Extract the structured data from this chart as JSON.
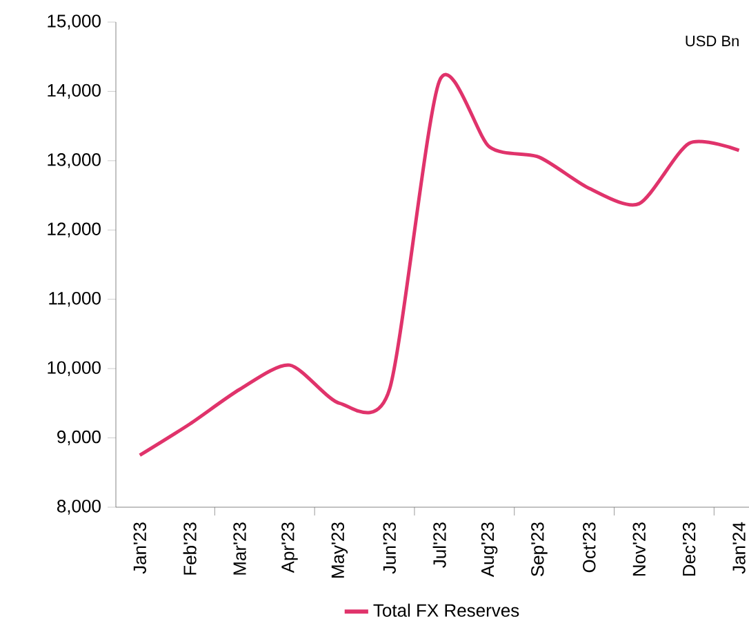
{
  "chart_data": {
    "type": "line",
    "categories": [
      "Jan'23",
      "Feb'23",
      "Mar'23",
      "Apr'23",
      "May'23",
      "Jun'23",
      "Jul'23",
      "Aug'23",
      "Sep'23",
      "Oct'23",
      "Nov'23",
      "Dec'23",
      "Jan'24"
    ],
    "series": [
      {
        "name": "Total FX Reserves",
        "color": "#e0336b",
        "values": [
          8750,
          9200,
          9700,
          10050,
          9500,
          9700,
          14150,
          13200,
          13050,
          12600,
          12380,
          13250,
          13150
        ]
      }
    ],
    "ylim": [
      8000,
      15000
    ],
    "yticks": [
      {
        "value": 8000,
        "label": "8,000"
      },
      {
        "value": 9000,
        "label": "9,000"
      },
      {
        "value": 10000,
        "label": "10,000"
      },
      {
        "value": 11000,
        "label": "11,000"
      },
      {
        "value": 12000,
        "label": "12,000"
      },
      {
        "value": 13000,
        "label": "13,000"
      },
      {
        "value": 14000,
        "label": "14,000"
      },
      {
        "value": 15000,
        "label": "15,000"
      }
    ],
    "annotations": [
      "USD Bn"
    ],
    "legend": "bottom",
    "grid": false,
    "marker": "none",
    "line_style": "solid"
  }
}
